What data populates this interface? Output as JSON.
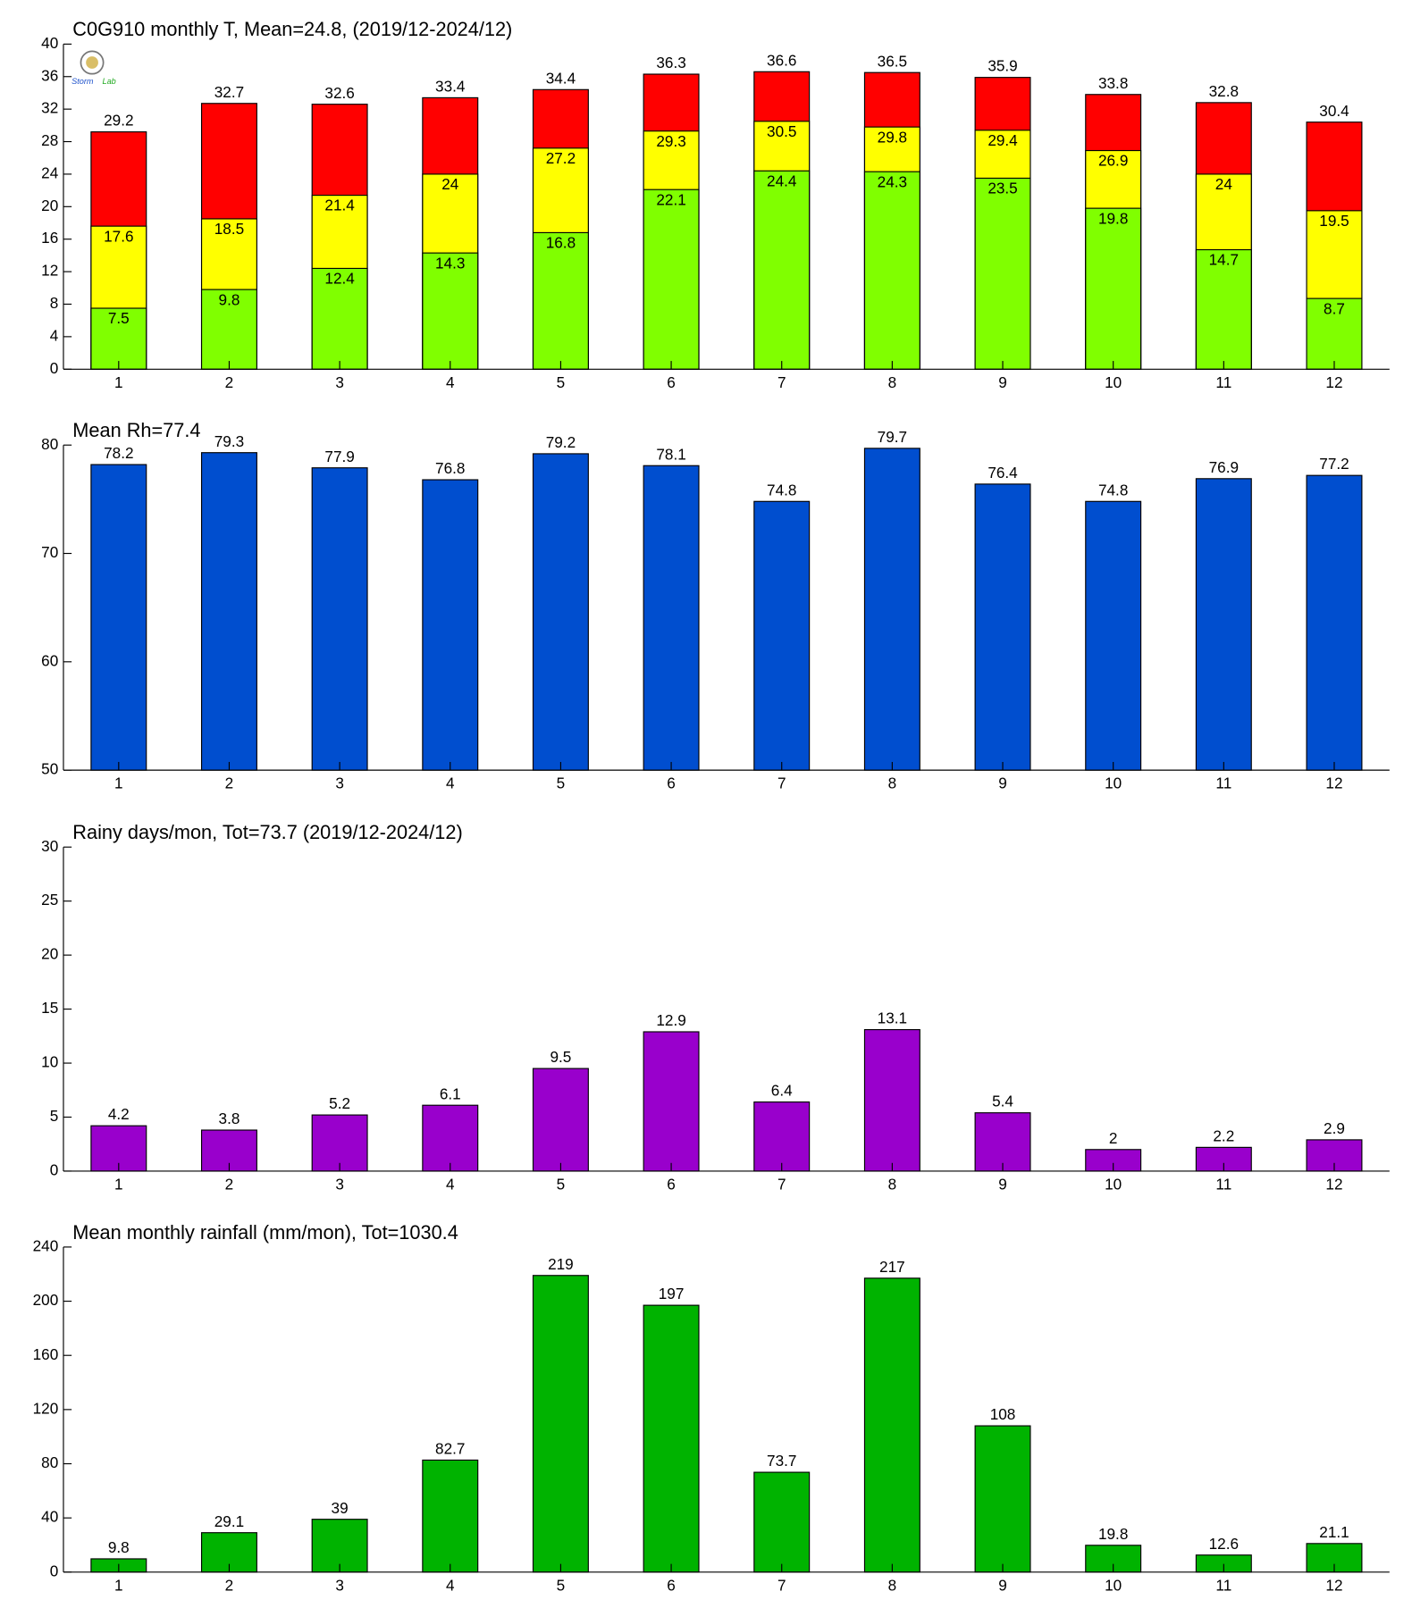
{
  "chart_data": [
    {
      "type": "bar",
      "title": "C0G910 monthly T, Mean=24.8, (2019/12-2024/12)",
      "categories": [
        1,
        2,
        3,
        4,
        5,
        6,
        7,
        8,
        9,
        10,
        11,
        12
      ],
      "series": [
        {
          "color": "#ff0000",
          "values": [
            29.2,
            32.7,
            32.6,
            33.4,
            34.4,
            36.3,
            36.6,
            36.5,
            35.9,
            33.8,
            32.8,
            30.4
          ]
        },
        {
          "color": "#ffff00",
          "values": [
            17.6,
            18.5,
            21.4,
            24,
            27.2,
            29.3,
            30.5,
            29.8,
            29.4,
            26.9,
            24,
            19.5
          ]
        },
        {
          "color": "#80ff00",
          "values": [
            7.5,
            9.8,
            12.4,
            14.3,
            16.8,
            22.1,
            24.4,
            24.3,
            23.5,
            19.8,
            14.7,
            8.7
          ]
        }
      ],
      "ylim": [
        0,
        40
      ],
      "yticks": [
        0,
        4,
        8,
        12,
        16,
        20,
        24,
        28,
        32,
        36,
        40
      ]
    },
    {
      "type": "bar",
      "title": "Mean Rh=77.4",
      "categories": [
        1,
        2,
        3,
        4,
        5,
        6,
        7,
        8,
        9,
        10,
        11,
        12
      ],
      "series": [
        {
          "color": "#004ecf",
          "values": [
            78.2,
            79.3,
            77.9,
            76.8,
            79.2,
            78.1,
            74.8,
            79.7,
            76.4,
            74.8,
            76.9,
            77.2
          ]
        }
      ],
      "ylim": [
        50,
        80
      ],
      "yticks": [
        50,
        60,
        70,
        80
      ]
    },
    {
      "type": "bar",
      "title": "Rainy days/mon, Tot=73.7 (2019/12-2024/12)",
      "categories": [
        1,
        2,
        3,
        4,
        5,
        6,
        7,
        8,
        9,
        10,
        11,
        12
      ],
      "series": [
        {
          "color": "#9900cc",
          "values": [
            4.2,
            3.8,
            5.2,
            6.1,
            9.5,
            12.9,
            6.4,
            13.1,
            5.4,
            2,
            2.2,
            2.9
          ]
        }
      ],
      "ylim": [
        0,
        30
      ],
      "yticks": [
        0,
        5,
        10,
        15,
        20,
        25,
        30
      ]
    },
    {
      "type": "bar",
      "title": "Mean monthly rainfall (mm/mon), Tot=1030.4",
      "categories": [
        1,
        2,
        3,
        4,
        5,
        6,
        7,
        8,
        9,
        10,
        11,
        12
      ],
      "series": [
        {
          "color": "#00b300",
          "values": [
            9.8,
            29.1,
            39,
            82.7,
            219,
            197,
            73.7,
            217,
            108,
            19.8,
            12.6,
            21.1
          ]
        }
      ],
      "ylim": [
        0,
        240
      ],
      "yticks": [
        0,
        40,
        80,
        120,
        160,
        200,
        240
      ]
    }
  ]
}
